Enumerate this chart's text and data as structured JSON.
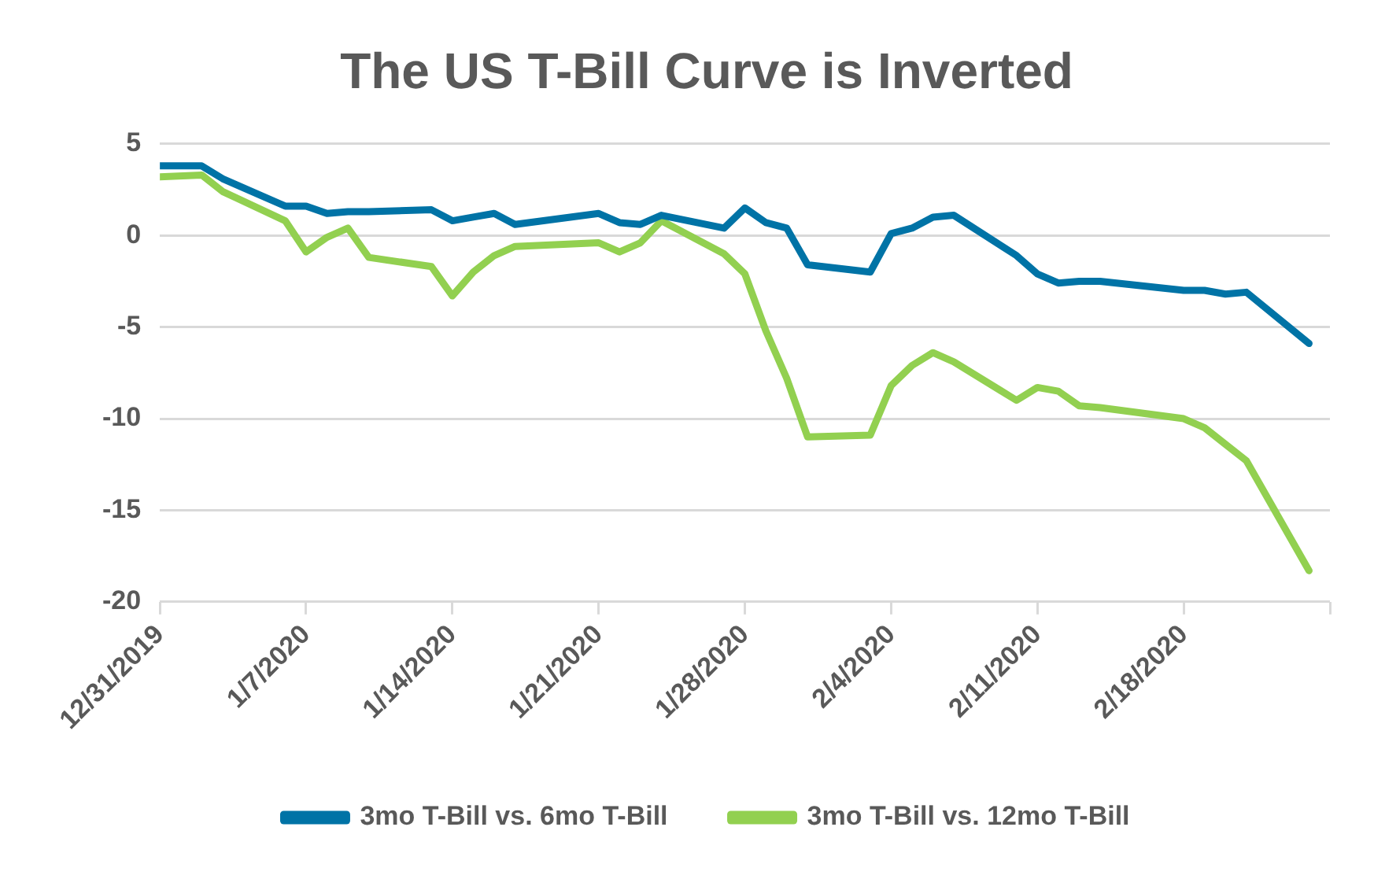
{
  "chart_data": {
    "type": "line",
    "title": "The US T-Bill Curve is Inverted",
    "x": [
      "2019-12-31",
      "2020-01-02",
      "2020-01-03",
      "2020-01-06",
      "2020-01-07",
      "2020-01-08",
      "2020-01-09",
      "2020-01-10",
      "2020-01-13",
      "2020-01-14",
      "2020-01-15",
      "2020-01-16",
      "2020-01-17",
      "2020-01-21",
      "2020-01-22",
      "2020-01-23",
      "2020-01-24",
      "2020-01-27",
      "2020-01-28",
      "2020-01-29",
      "2020-01-30",
      "2020-01-31",
      "2020-02-03",
      "2020-02-04",
      "2020-02-05",
      "2020-02-06",
      "2020-02-07",
      "2020-02-10",
      "2020-02-11",
      "2020-02-12",
      "2020-02-13",
      "2020-02-14",
      "2020-02-18",
      "2020-02-19",
      "2020-02-20",
      "2020-02-21",
      "2020-02-24"
    ],
    "series": [
      {
        "name": "3mo T-Bill vs. 6mo T-Bill",
        "color": "#0073a6",
        "values": [
          3.8,
          3.8,
          3.1,
          1.6,
          1.6,
          1.2,
          1.3,
          1.3,
          1.4,
          0.8,
          1.0,
          1.2,
          0.6,
          1.2,
          0.7,
          0.6,
          1.1,
          0.4,
          1.5,
          0.7,
          0.4,
          -1.6,
          -2.0,
          0.1,
          0.4,
          1.0,
          1.1,
          -1.1,
          -2.1,
          -2.6,
          -2.5,
          -2.5,
          -3.0,
          -3.0,
          -3.2,
          -3.1,
          -5.9
        ]
      },
      {
        "name": "3mo T-Bill vs. 12mo T-Bill",
        "color": "#92d050",
        "values": [
          3.2,
          3.3,
          2.4,
          0.8,
          -0.9,
          -0.1,
          0.4,
          -1.2,
          -1.7,
          -3.3,
          -2.0,
          -1.1,
          -0.6,
          -0.4,
          -0.9,
          -0.4,
          0.8,
          -1.0,
          -2.1,
          -5.2,
          -7.8,
          -11.0,
          -10.9,
          -8.2,
          -7.1,
          -6.4,
          -6.9,
          -9.0,
          -8.3,
          -8.5,
          -9.3,
          -9.4,
          -10.0,
          -10.5,
          -11.4,
          -12.3,
          -18.3
        ]
      }
    ],
    "xlim": [
      "2019-12-31",
      "2020-02-25"
    ],
    "xticks": [
      {
        "value": "2019-12-31",
        "label": "12/31/2019"
      },
      {
        "value": "2020-01-07",
        "label": "1/7/2020"
      },
      {
        "value": "2020-01-14",
        "label": "1/14/2020"
      },
      {
        "value": "2020-01-21",
        "label": "1/21/2020"
      },
      {
        "value": "2020-01-28",
        "label": "1/28/2020"
      },
      {
        "value": "2020-02-04",
        "label": "2/4/2020"
      },
      {
        "value": "2020-02-11",
        "label": "2/11/2020"
      },
      {
        "value": "2020-02-18",
        "label": "2/18/2020"
      },
      {
        "value": "2020-02-25",
        "label": null
      }
    ],
    "ylim": [
      -20,
      5
    ],
    "yticks": [
      -20,
      -15,
      -10,
      -5,
      0,
      5
    ],
    "grid": "y",
    "legend": "bottom",
    "marker": "none",
    "line_style": "solid"
  }
}
